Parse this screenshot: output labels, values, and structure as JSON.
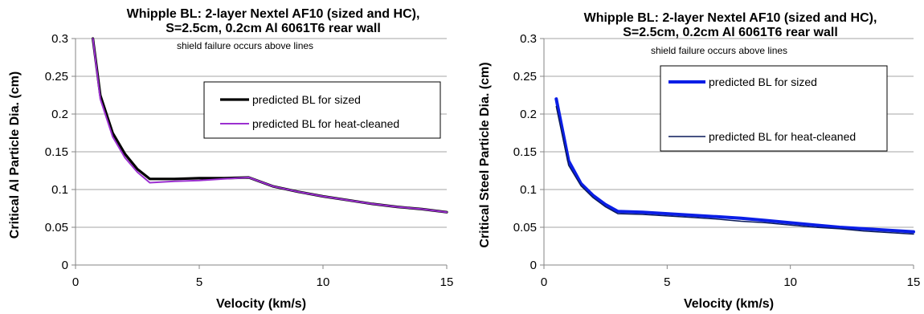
{
  "chart_data": [
    {
      "type": "line",
      "title_line1": "Whipple BL: 2-layer Nextel AF10 (sized and HC),",
      "title_line2": "S=2.5cm, 0.2cm Al 6061T6 rear wall",
      "annotation": "shield failure occurs above lines",
      "xlabel": "Velocity (km/s)",
      "ylabel": "Critical Al Particle Dia. (cm)",
      "xlim": [
        0,
        15
      ],
      "ylim": [
        0,
        0.3
      ],
      "xticks": [
        0,
        5,
        10,
        15
      ],
      "yticks": [
        0,
        0.05,
        0.1,
        0.15,
        0.2,
        0.25,
        0.3
      ],
      "xtick_labels": [
        "0",
        "5",
        "10",
        "15"
      ],
      "ytick_labels": [
        "0",
        "0.05",
        "0.1",
        "0.15",
        "0.2",
        "0.25",
        "0.3"
      ],
      "grid": "horizontal",
      "legend_position": "top-right",
      "series": [
        {
          "name": "predicted BL for sized",
          "color": "#000000",
          "x": [
            0.7,
            1.0,
            1.5,
            2.0,
            2.5,
            3.0,
            4.0,
            5.0,
            6.0,
            7.0,
            8.0,
            9.0,
            10.0,
            11.0,
            12.0,
            13.0,
            14.0,
            15.0
          ],
          "y": [
            0.3,
            0.225,
            0.175,
            0.147,
            0.127,
            0.114,
            0.114,
            0.115,
            0.115,
            0.116,
            0.104,
            0.097,
            0.091,
            0.086,
            0.081,
            0.077,
            0.074,
            0.07
          ]
        },
        {
          "name": "predicted BL for heat-cleaned",
          "color": "#9b30d0",
          "x": [
            0.7,
            1.0,
            1.5,
            2.0,
            2.5,
            3.0,
            4.0,
            5.0,
            6.0,
            7.0,
            8.0,
            9.0,
            10.0,
            11.0,
            12.0,
            13.0,
            14.0,
            15.0
          ],
          "y": [
            0.3,
            0.22,
            0.17,
            0.142,
            0.123,
            0.109,
            0.111,
            0.112,
            0.114,
            0.116,
            0.104,
            0.097,
            0.091,
            0.086,
            0.081,
            0.077,
            0.074,
            0.07
          ]
        }
      ]
    },
    {
      "type": "line",
      "title_line1": "Whipple BL: 2-layer Nextel AF10 (sized and HC),",
      "title_line2": "S=2.5cm, 0.2cm Al 6061T6 rear wall",
      "annotation": "shield failure occurs above lines",
      "xlabel": "Velocity (km/s)",
      "ylabel": "Critical Steel Particle Dia. (cm)",
      "xlim": [
        0,
        15
      ],
      "ylim": [
        0,
        0.3
      ],
      "xticks": [
        0,
        5,
        10,
        15
      ],
      "yticks": [
        0,
        0.05,
        0.1,
        0.15,
        0.2,
        0.25,
        0.3
      ],
      "xtick_labels": [
        "0",
        "5",
        "10",
        "15"
      ],
      "ytick_labels": [
        "0",
        "0.05",
        "0.1",
        "0.15",
        "0.2",
        "0.25",
        "0.3"
      ],
      "grid": "horizontal",
      "legend_position": "top-right",
      "series": [
        {
          "name": "predicted BL for sized",
          "color": "#0a1ee6",
          "x": [
            0.5,
            1.0,
            1.5,
            2.0,
            2.5,
            3.0,
            4.0,
            5.0,
            6.0,
            7.0,
            8.0,
            9.0,
            10.0,
            11.0,
            12.0,
            13.0,
            14.0,
            15.0
          ],
          "y": [
            0.22,
            0.138,
            0.108,
            0.092,
            0.08,
            0.071,
            0.07,
            0.068,
            0.066,
            0.064,
            0.062,
            0.059,
            0.056,
            0.053,
            0.05,
            0.048,
            0.046,
            0.044
          ]
        },
        {
          "name": "predicted BL for heat-cleaned",
          "color": "#0a1a5a",
          "x": [
            0.5,
            1.0,
            1.5,
            2.0,
            2.5,
            3.0,
            4.0,
            5.0,
            6.0,
            7.0,
            8.0,
            9.0,
            10.0,
            11.0,
            12.0,
            13.0,
            14.0,
            15.0
          ],
          "y": [
            0.21,
            0.132,
            0.105,
            0.089,
            0.077,
            0.068,
            0.067,
            0.065,
            0.063,
            0.061,
            0.058,
            0.056,
            0.053,
            0.05,
            0.048,
            0.045,
            0.043,
            0.041
          ]
        }
      ]
    }
  ]
}
